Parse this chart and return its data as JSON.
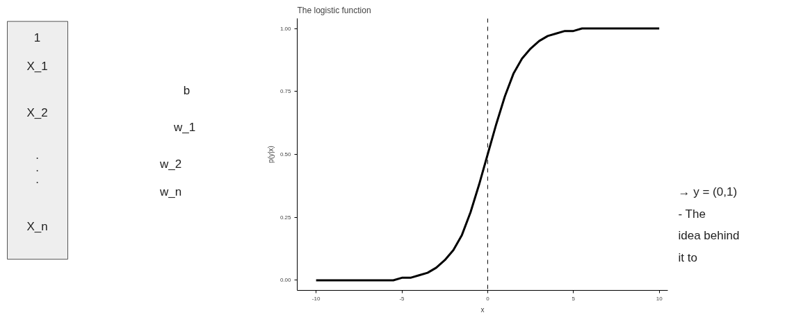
{
  "chart_data": {
    "type": "line",
    "title": "The logistic function",
    "xlabel": "x",
    "ylabel": "p(y|x)",
    "x": [
      -10,
      -9.5,
      -9,
      -8.5,
      -8,
      -7.5,
      -7,
      -6.5,
      -6,
      -5.5,
      -5,
      -4.5,
      -4,
      -3.5,
      -3,
      -2.5,
      -2,
      -1.5,
      -1,
      -0.5,
      0,
      0.5,
      1,
      1.5,
      2,
      2.5,
      3,
      3.5,
      4,
      4.5,
      5,
      5.5,
      6,
      6.5,
      7,
      7.5,
      8,
      8.5,
      9,
      9.5,
      10
    ],
    "series": [
      {
        "color": "#000000",
        "values": [
          0,
          0,
          0,
          0,
          0,
          0,
          0,
          0,
          0,
          0,
          0.01,
          0.01,
          0.02,
          0.03,
          0.05,
          0.08,
          0.12,
          0.18,
          0.27,
          0.38,
          0.5,
          0.62,
          0.73,
          0.82,
          0.88,
          0.92,
          0.95,
          0.97,
          0.98,
          0.99,
          0.99,
          1,
          1,
          1,
          1,
          1,
          1,
          1,
          1,
          1,
          1
        ]
      }
    ],
    "xlim": [
      -11.1,
      10.5
    ],
    "ylim": [
      -0.04,
      1.04
    ],
    "xticks": [
      -10,
      -5,
      0,
      5,
      10
    ],
    "yticks": [
      {
        "value": 0,
        "label": "0.00"
      },
      {
        "value": 0.25,
        "label": "0.25"
      },
      {
        "value": 0.5,
        "label": "0.50"
      },
      {
        "value": 0.75,
        "label": "0.75"
      },
      {
        "value": 1,
        "label": "1.00"
      }
    ],
    "ref_lines": [
      {
        "axis": "x",
        "value": 0,
        "color": "#000000",
        "line_style": "dashed"
      }
    ],
    "grid": false,
    "marker": "none",
    "line_style": "solid",
    "annotations": [
      "1",
      "X_1",
      "X_2",
      ".",
      ".",
      ".",
      "X_n",
      "b",
      "w_1",
      "w_2",
      "w_n",
      "→ y = (0,1)",
      "-    The",
      "idea behind",
      "it to"
    ]
  }
}
